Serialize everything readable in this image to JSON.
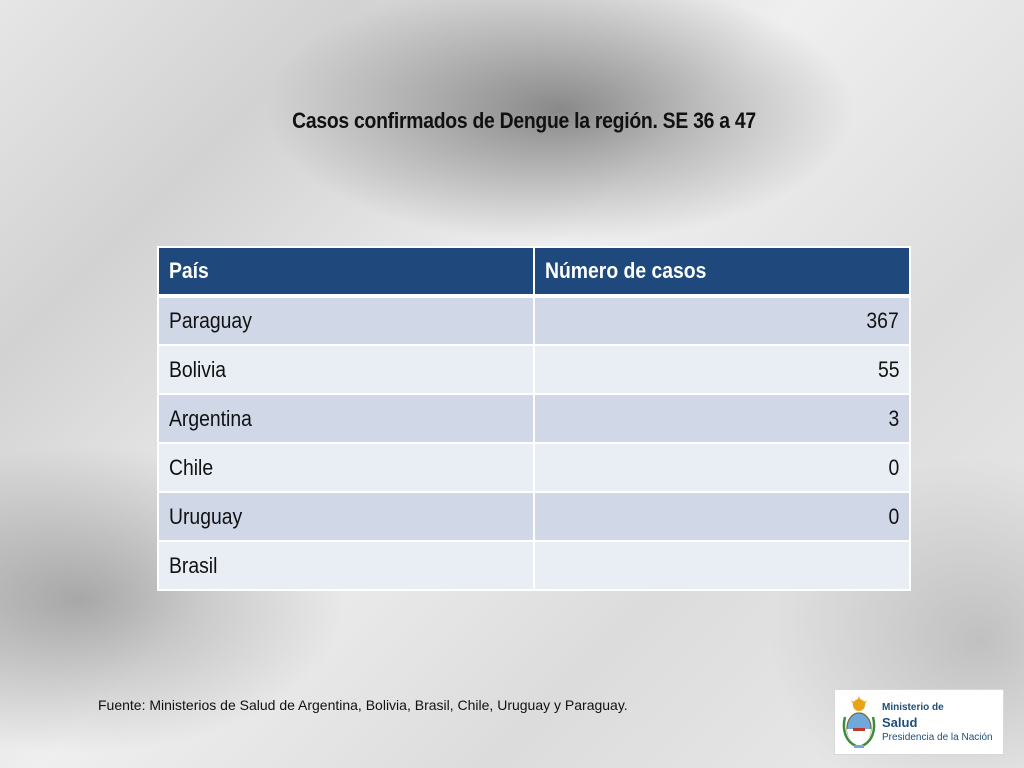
{
  "slide": {
    "title": "Casos confirmados de Dengue la región. SE 36 a 47",
    "source": "Fuente: Ministerios de Salud de Argentina, Bolivia, Brasil, Chile, Uruguay y Paraguay."
  },
  "table": {
    "headers": [
      "País",
      "Número de casos"
    ],
    "rows": [
      {
        "country": "Paraguay",
        "cases": "367"
      },
      {
        "country": "Bolivia",
        "cases": "55"
      },
      {
        "country": "Argentina",
        "cases": "3"
      },
      {
        "country": "Chile",
        "cases": "0"
      },
      {
        "country": "Uruguay",
        "cases": "0"
      },
      {
        "country": "Brasil",
        "cases": ""
      }
    ]
  },
  "logo": {
    "icon": "argentina-coat-of-arms-icon",
    "line1": "Ministerio de",
    "line2": "Salud",
    "line3": "Presidencia de la Nación"
  },
  "colors": {
    "header_bg": "#1f497d",
    "row_odd": "#d0d8e8",
    "row_even": "#e9edf4",
    "logo_text": "#1f4e79"
  }
}
